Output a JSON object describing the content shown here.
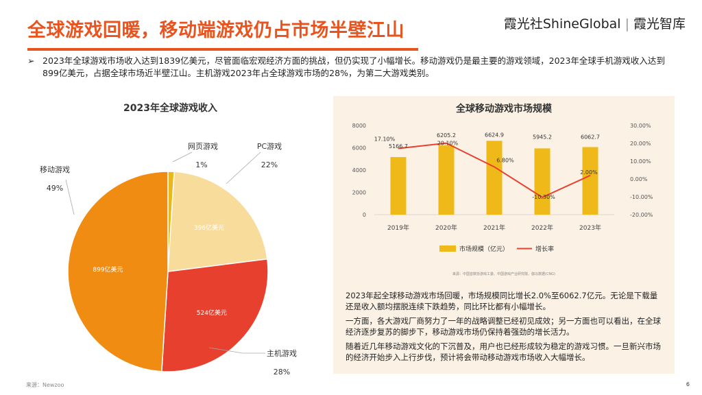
{
  "header": {
    "title": "全球游戏回暖，移动端游戏仍占市场半壁江山",
    "brand_left": "霞光社ShineGlobal",
    "brand_right": "霞光智库"
  },
  "intro": {
    "bullet": "➢",
    "text": "2023年全球游戏市场收入达到1839亿美元，尽管面临宏观经济方面的挑战，但仍实现了小幅增长。移动游戏仍是最主要的游戏领域，2023年全球手机游戏收入达到899亿美元，占据全球市场近半壁江山。主机游戏2023年占全球游戏市场的28%，为第二大游戏类别。"
  },
  "footer": {
    "source": "来源：Newzoo",
    "page": "6"
  },
  "colors": {
    "accent": "#e8541f",
    "mobile": "#f08c12",
    "console": "#e8402f",
    "pc": "#f7dc9c",
    "web": "#e9b81d",
    "bar": "#f0b91a",
    "line": "#e8402f"
  },
  "chart_data": [
    {
      "type": "pie",
      "title": "2023年全球游戏收入",
      "slices": [
        {
          "name": "网页游戏",
          "percent": 1,
          "pct_label": "1%",
          "inner_label": ""
        },
        {
          "name": "PC游戏",
          "percent": 22,
          "pct_label": "22%",
          "inner_label": "396亿美元"
        },
        {
          "name": "主机游戏",
          "percent": 28,
          "pct_label": "28%",
          "inner_label": "524亿美元"
        },
        {
          "name": "移动游戏",
          "percent": 49,
          "pct_label": "49%",
          "inner_label": "899亿美元"
        }
      ]
    },
    {
      "type": "bar",
      "title": "全球移动游戏市场规模",
      "categories": [
        "2019年",
        "2020年",
        "2021年",
        "2022年",
        "2023年"
      ],
      "series": [
        {
          "name": "市场规模（亿元）",
          "type": "bar",
          "values": [
            5166.7,
            6205.2,
            6624.9,
            5945.2,
            6062.7
          ],
          "labels": [
            "5166.7",
            "6205.2",
            "6624.9",
            "5945.2",
            "6062.7"
          ]
        },
        {
          "name": "增长率",
          "type": "line",
          "values": [
            17.1,
            20.1,
            6.8,
            -10.3,
            2.0
          ],
          "labels": [
            "17.10%",
            "20.10%",
            "6.80%",
            "-10.30%",
            "2.00%"
          ]
        }
      ],
      "left_ticks": [
        "0",
        "2000",
        "4000",
        "6000",
        "8000"
      ],
      "right_ticks": [
        "-20.00%",
        "-10.00%",
        "0.00%",
        "10.00%",
        "20.00%",
        "30.00%"
      ],
      "ylim_left": [
        0,
        8000
      ],
      "ylim_right": [
        -20,
        30
      ],
      "source": "来源：中国音数协游戏工委、中国游戏产业研究院、伽马数据(CNG)"
    }
  ],
  "paragraphs": [
    "2023年起全球移动游戏市场回暖，市场规模同比增长2.0%至6062.7亿元。无论是下载量还是收入额均摆脱连续下跌趋势，同比环比都有小幅增长。",
    "一方面，各大游戏厂商努力了一年的战略调整已经初见成效；另一方面也可以看出，在全球经济逐步复苏的脚步下，移动游戏市场仍保持着强劲的增长活力。",
    "随着近几年移动游戏文化的下沉普及，用户也已经形成较为稳定的游戏习惯。一旦新兴市场的经济开始步入上行步伐，预计将会带动移动游戏市场收入大幅增长。"
  ]
}
